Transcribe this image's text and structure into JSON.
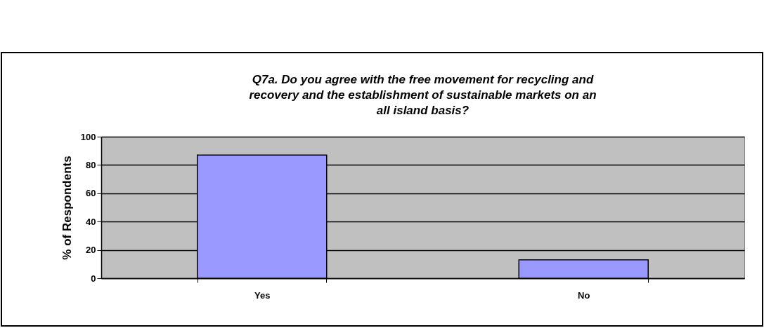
{
  "chart_data": {
    "type": "bar",
    "title": "Q7a.  Do you agree with the free movement for recycling and recovery and the establishment of sustainable markets on an all island basis?",
    "ylabel": "% of Respondents",
    "categories": [
      "Yes",
      "No"
    ],
    "values": [
      87,
      13
    ],
    "color": "#9999ff",
    "ylim": [
      0,
      100
    ],
    "yticks": [
      0,
      20,
      40,
      60,
      80,
      100
    ],
    "grid": "y"
  }
}
